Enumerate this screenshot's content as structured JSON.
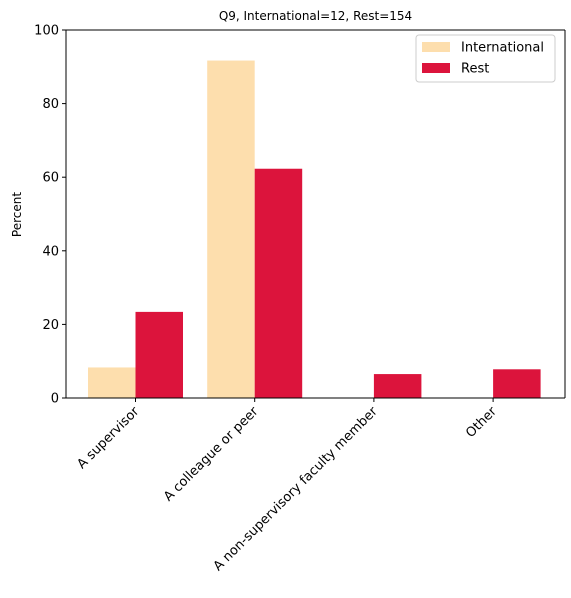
{
  "chart_data": {
    "type": "bar",
    "title": "Q9, International=12, Rest=154",
    "xlabel": "",
    "ylabel": "Percent",
    "ylim": [
      0,
      100
    ],
    "yticks": [
      0,
      20,
      40,
      60,
      80,
      100
    ],
    "categories": [
      "A supervisor",
      "A colleague or peer",
      "A non-supervisory faculty member",
      "Other"
    ],
    "series": [
      {
        "name": "International",
        "color": "#FDDEAD",
        "values": [
          8.3,
          91.7,
          0,
          0
        ]
      },
      {
        "name": "Rest",
        "color": "#DC143C",
        "values": [
          23.4,
          62.3,
          6.5,
          7.8
        ]
      }
    ],
    "grid": false,
    "legend_position": "top-right"
  }
}
